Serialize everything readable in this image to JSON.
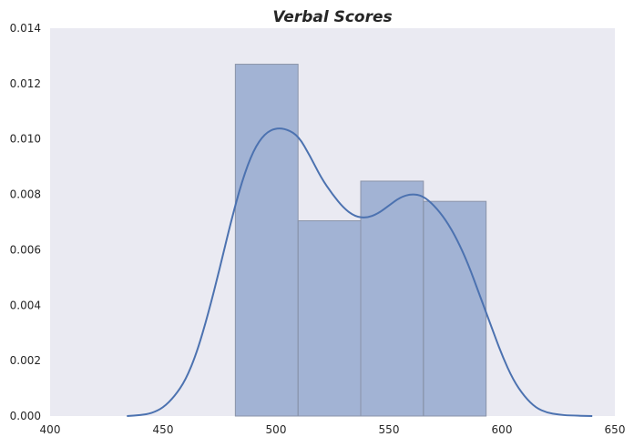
{
  "chart_data": {
    "type": "bar",
    "title": "Verbal Scores",
    "xlabel": "",
    "ylabel": "",
    "xlim": [
      400,
      650
    ],
    "ylim": [
      0,
      0.014
    ],
    "x_ticks": [
      "400",
      "450",
      "500",
      "550",
      "600",
      "650"
    ],
    "x_tick_values": [
      400,
      450,
      500,
      550,
      600,
      650
    ],
    "y_ticks": [
      "0.000",
      "0.002",
      "0.004",
      "0.006",
      "0.008",
      "0.010",
      "0.012",
      "0.014"
    ],
    "y_tick_values": [
      0,
      0.002,
      0.004,
      0.006,
      0.008,
      0.01,
      0.012,
      0.014
    ],
    "grid": false,
    "histogram": {
      "bin_edges": [
        482,
        509.75,
        537.5,
        565.25,
        593
      ],
      "density": [
        0.0127,
        0.00705,
        0.00848,
        0.00775
      ],
      "color": "#4c72b0",
      "opacity": 0.45
    },
    "kde": {
      "color": "#4c72b0",
      "points": [
        [
          434,
          0.0
        ],
        [
          440,
          3e-05
        ],
        [
          445,
          0.0001
        ],
        [
          450,
          0.0003
        ],
        [
          455,
          0.0007
        ],
        [
          460,
          0.0013
        ],
        [
          465,
          0.0023
        ],
        [
          470,
          0.0037
        ],
        [
          475,
          0.0053
        ],
        [
          480,
          0.007
        ],
        [
          485,
          0.0085
        ],
        [
          490,
          0.0096
        ],
        [
          495,
          0.0102
        ],
        [
          500,
          0.0104
        ],
        [
          505,
          0.01035
        ],
        [
          510,
          0.0101
        ],
        [
          515,
          0.0094
        ],
        [
          520,
          0.0086
        ],
        [
          525,
          0.008
        ],
        [
          530,
          0.0075
        ],
        [
          535,
          0.0072
        ],
        [
          540,
          0.00715
        ],
        [
          545,
          0.0073
        ],
        [
          550,
          0.0076
        ],
        [
          555,
          0.0079
        ],
        [
          560,
          0.00802
        ],
        [
          565,
          0.00795
        ],
        [
          570,
          0.0076
        ],
        [
          575,
          0.0071
        ],
        [
          580,
          0.0064
        ],
        [
          585,
          0.0055
        ],
        [
          590,
          0.0044
        ],
        [
          595,
          0.0033
        ],
        [
          600,
          0.0022
        ],
        [
          605,
          0.0013
        ],
        [
          610,
          0.0007
        ],
        [
          615,
          0.0003
        ],
        [
          620,
          0.00012
        ],
        [
          625,
          5e-05
        ],
        [
          630,
          2e-05
        ],
        [
          640,
          0.0
        ]
      ]
    },
    "background": "#eaeaf2"
  }
}
